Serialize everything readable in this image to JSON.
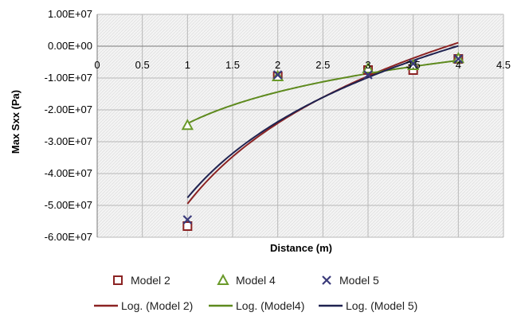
{
  "chart_data": {
    "type": "scatter",
    "xlabel": "Distance (m)",
    "ylabel": "Max Sxx (Pa)",
    "xlim": [
      0,
      4.5
    ],
    "ylim": [
      -60000000,
      10000000
    ],
    "x_ticks": [
      "0",
      "0.5",
      "1",
      "1.5",
      "2",
      "2.5",
      "3",
      "3.5",
      "4",
      "4.5"
    ],
    "y_ticks": [
      "1.00E+07",
      "0.00E+00",
      "-1.00E+07",
      "-2.00E+07",
      "-3.00E+07",
      "-4.00E+07",
      "-5.00E+07",
      "-6.00E+07"
    ],
    "grid": true,
    "legend_placement": "bottom",
    "series": [
      {
        "name": "Model 2",
        "marker": "square",
        "color": "#8b2323",
        "points": [
          [
            1,
            -56500000
          ],
          [
            2,
            -9500000
          ],
          [
            3,
            -7500000
          ],
          [
            3.5,
            -7500000
          ],
          [
            4,
            -4000000
          ]
        ]
      },
      {
        "name": "Model 4",
        "marker": "triangle",
        "color": "#6a9a2a",
        "points": [
          [
            1,
            -24800000
          ],
          [
            2,
            -9500000
          ],
          [
            3,
            -7000000
          ],
          [
            3.5,
            -6000000
          ],
          [
            4,
            -3800000
          ]
        ]
      },
      {
        "name": "Model 5",
        "marker": "x",
        "color": "#3a3a7a",
        "points": [
          [
            1,
            -54500000
          ],
          [
            2,
            -9000000
          ],
          [
            3,
            -9000000
          ],
          [
            3.5,
            -5500000
          ],
          [
            4,
            -4000000
          ]
        ]
      }
    ],
    "trendlines": [
      {
        "name": "Log. (Model 2)",
        "color": "#8b2323",
        "a": -49500000,
        "b": 36500000
      },
      {
        "name": "Log. (Model4)",
        "color": "#5e8a1e",
        "a": -24300000,
        "b": 14300000
      },
      {
        "name": "Log. (Model 5)",
        "color": "#1f2250",
        "a": -47600000,
        "b": 34400000
      }
    ]
  }
}
